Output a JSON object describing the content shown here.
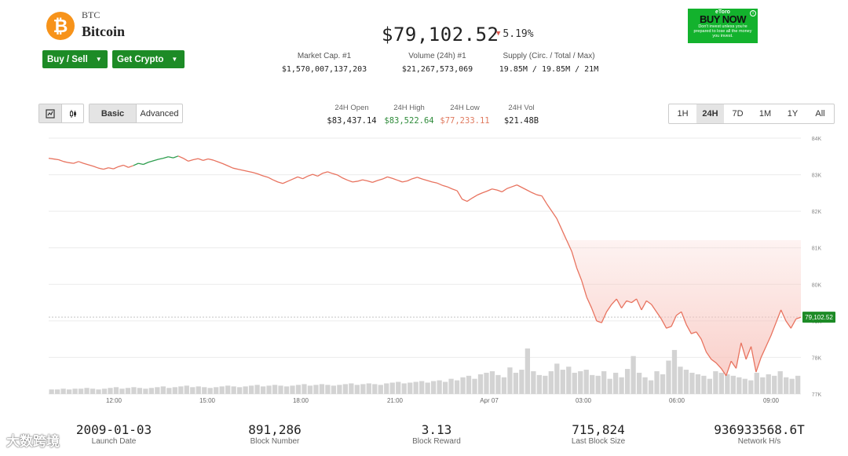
{
  "coin": {
    "symbol": "BTC",
    "name": "Bitcoin",
    "icon": "bitcoin-icon",
    "icon_glyph": "₿"
  },
  "actions": {
    "buy_sell": "Buy / Sell",
    "get_crypto": "Get Crypto"
  },
  "price": {
    "value": "$79,102.52",
    "change": "5.19%",
    "direction": "down"
  },
  "stats": [
    {
      "label": "Market Cap. #1",
      "value": "$1,570,007,137,203"
    },
    {
      "label": "Volume (24h) #1",
      "value": "$21,267,573,069"
    },
    {
      "label": "Supply (Circ. / Total / Max)",
      "value": "19.85M / 19.85M / 21M"
    }
  ],
  "ad": {
    "brand": "eToro",
    "cta": "BUY NOW",
    "disclaimer": "Don't invest unless you're prepared to lose all the money you invest.",
    "info_glyph": "i"
  },
  "toolbar": {
    "chart_type_icons": [
      "line-chart-icon",
      "candlestick-icon"
    ],
    "modes": [
      "Basic",
      "Advanced"
    ],
    "active_mode": "Basic",
    "ranges": [
      "1H",
      "24H",
      "7D",
      "1M",
      "1Y",
      "All"
    ],
    "active_range": "24H"
  },
  "ohlc": [
    {
      "label": "24H Open",
      "value": "$83,437.14",
      "color": "#222222"
    },
    {
      "label": "24H High",
      "value": "$83,522.64",
      "color": "#2e8b3a"
    },
    {
      "label": "24H Low",
      "value": "$77,233.11",
      "color": "#e07a5f"
    },
    {
      "label": "24H Vol",
      "value": "$21.48B",
      "color": "#222222"
    }
  ],
  "chart_data": {
    "type": "line",
    "title": "",
    "xlabel": "",
    "ylabel": "",
    "x_ticks": [
      "12:00",
      "15:00",
      "18:00",
      "21:00",
      "Apr 07",
      "03:00",
      "06:00",
      "09:00"
    ],
    "y_ticks": [
      "84K",
      "83K",
      "82K",
      "81K",
      "80K",
      "79K",
      "78K",
      "77K"
    ],
    "ylim": [
      77000,
      84000
    ],
    "current_price_label": "79,102.52",
    "reference_price": 79102.52,
    "grid": true,
    "colors": {
      "line_down": "#e8735f",
      "line_up": "#2e9e4f",
      "area_fill": "#f8c4bd",
      "volume": "#d3d3d3",
      "price_tag": "#1d8b26"
    },
    "series": [
      {
        "values": [
          83450,
          83430,
          83410,
          83360,
          83330,
          83310,
          83360,
          83310,
          83270,
          83230,
          83180,
          83150,
          83190,
          83160,
          83220,
          83260,
          83200,
          83250,
          83310,
          83280,
          83340,
          83380,
          83420,
          83450,
          83490,
          83460,
          83510,
          83450,
          83370,
          83410,
          83440,
          83390,
          83430,
          83400,
          83350,
          83300,
          83240,
          83180,
          83150,
          83120,
          83090,
          83060,
          83020,
          82970,
          82930,
          82860,
          82800,
          82760,
          82820,
          82880,
          82940,
          82890,
          82960,
          83010,
          82960,
          83040,
          83080,
          83030,
          82990,
          82910,
          82850,
          82800,
          82820,
          82860,
          82830,
          82790,
          82840,
          82880,
          82940,
          82900,
          82850,
          82800,
          82830,
          82890,
          82930,
          82880,
          82840,
          82800,
          82770,
          82710,
          82670,
          82610,
          82560,
          82330,
          82270,
          82360,
          82440,
          82500,
          82550,
          82610,
          82580,
          82530,
          82620,
          82670,
          82720,
          82650,
          82580,
          82510,
          82450,
          82420,
          82200,
          82000,
          81800,
          81500,
          81200,
          80900,
          80450,
          80100,
          79650,
          79350,
          79000,
          78950,
          79250,
          79450,
          79600,
          79350,
          79550,
          79500,
          79600,
          79300,
          79550,
          79450,
          79250,
          79050,
          78800,
          78850,
          79150,
          79250,
          78900,
          78650,
          78700,
          78500,
          78150,
          77950,
          77850,
          77700,
          77500,
          77900,
          77700,
          78400,
          77950,
          78300,
          77600,
          78000,
          78300,
          78600,
          78950,
          79300,
          79000,
          78800,
          79050,
          79102.52
        ]
      }
    ],
    "volume_values": [
      6,
      6,
      7,
      6,
      7,
      7,
      8,
      7,
      6,
      7,
      8,
      9,
      7,
      8,
      9,
      8,
      7,
      8,
      9,
      10,
      8,
      9,
      10,
      11,
      9,
      10,
      9,
      8,
      9,
      10,
      11,
      10,
      9,
      10,
      11,
      12,
      10,
      11,
      12,
      11,
      10,
      11,
      12,
      13,
      11,
      12,
      13,
      12,
      11,
      12,
      13,
      14,
      12,
      13,
      14,
      13,
      12,
      14,
      15,
      16,
      14,
      15,
      16,
      17,
      15,
      17,
      18,
      16,
      20,
      18,
      22,
      24,
      20,
      26,
      28,
      30,
      25,
      22,
      35,
      28,
      32,
      60,
      30,
      25,
      24,
      30,
      40,
      32,
      36,
      28,
      30,
      32,
      25,
      24,
      30,
      20,
      28,
      22,
      33,
      50,
      28,
      22,
      18,
      30,
      26,
      44,
      58,
      36,
      32,
      28,
      26,
      24,
      20,
      30,
      28,
      26,
      24,
      22,
      20,
      18,
      28,
      22,
      26,
      24,
      30,
      22,
      20,
      24
    ]
  },
  "footer": [
    {
      "value": "2009-01-03",
      "label": "Launch Date"
    },
    {
      "value": "891,286",
      "label": "Block Number"
    },
    {
      "value": "3.13",
      "label": "Block Reward"
    },
    {
      "value": "715,824",
      "label": "Last Block Size"
    },
    {
      "value": "936933568.6T",
      "label": "Network H/s"
    }
  ],
  "watermark": "大数跨境"
}
